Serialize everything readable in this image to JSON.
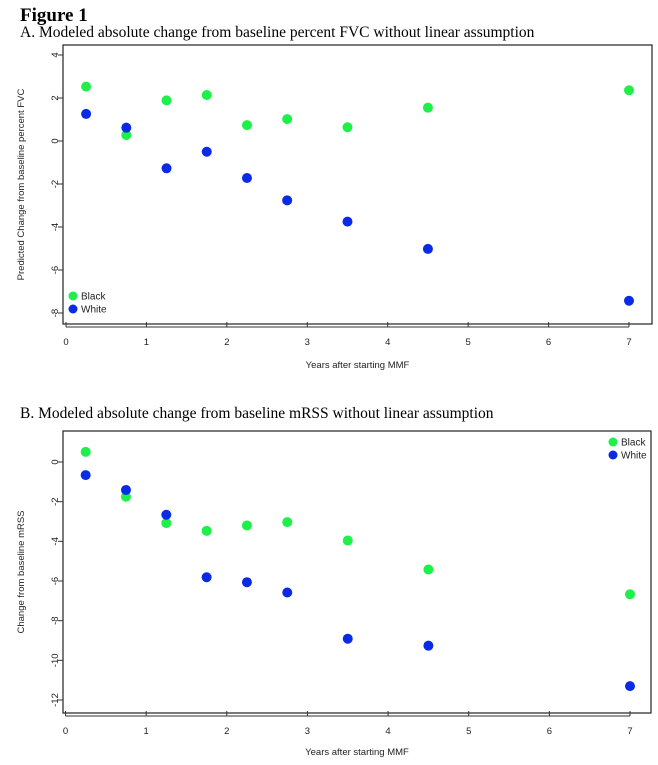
{
  "figure_title": "Figure 1",
  "chart_data": [
    {
      "type": "scatter",
      "panel_title": "A.  Modeled absolute change from baseline percent FVC without linear assumption",
      "xlabel": "Years after starting MMF",
      "ylabel": "Predicted Change from baseline percent FVC",
      "xlim": [
        0,
        7.2
      ],
      "ylim": [
        -8.2,
        4
      ],
      "xticks": [
        0,
        1,
        2,
        3,
        4,
        5,
        6,
        7
      ],
      "yticks": [
        -8,
        -6,
        -4,
        -2,
        0,
        2,
        4
      ],
      "grid": false,
      "legend_position": "bottom-left",
      "x": [
        0.25,
        0.75,
        1.25,
        1.75,
        2.25,
        2.75,
        3.5,
        4.5,
        7
      ],
      "series": [
        {
          "name": "Black",
          "color": "#1ef04a",
          "values": [
            2.53,
            0.28,
            1.89,
            2.14,
            0.74,
            1.02,
            0.64,
            1.55,
            2.36
          ]
        },
        {
          "name": "White",
          "color": "#0a2be6",
          "values": [
            1.26,
            0.62,
            -1.27,
            -0.5,
            -1.72,
            -2.76,
            -3.75,
            -5.02,
            -7.43
          ]
        }
      ]
    },
    {
      "type": "scatter",
      "panel_title": "B.  Modeled absolute change from baseline mRSS without linear assumption",
      "xlabel": "Years after starting MMF",
      "ylabel": "Change from baseline mRSS",
      "xlim": [
        0,
        7.2
      ],
      "ylim": [
        -12.5,
        0.8
      ],
      "xticks": [
        0,
        1,
        2,
        3,
        4,
        5,
        6,
        7
      ],
      "yticks": [
        -12,
        -10,
        -8,
        -6,
        -4,
        -2,
        0
      ],
      "grid": false,
      "legend_position": "top-right",
      "x": [
        0.25,
        0.75,
        1.25,
        1.75,
        2.25,
        2.75,
        3.5,
        4.5,
        7
      ],
      "series": [
        {
          "name": "Black",
          "color": "#1ef04a",
          "values": [
            0.51,
            -1.75,
            -3.08,
            -3.47,
            -3.2,
            -3.03,
            -3.96,
            -5.42,
            -6.67
          ]
        },
        {
          "name": "White",
          "color": "#0a2be6",
          "values": [
            -0.66,
            -1.41,
            -2.66,
            -5.81,
            -6.06,
            -6.58,
            -8.91,
            -9.26,
            -11.3
          ]
        }
      ]
    }
  ]
}
